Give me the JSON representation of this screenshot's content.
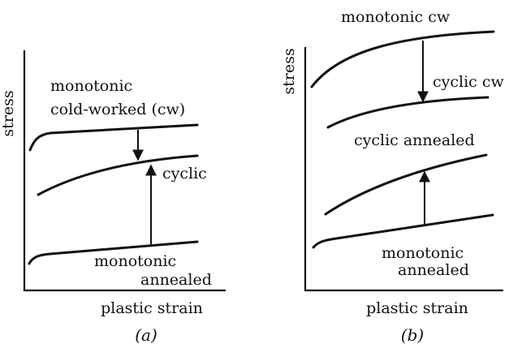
{
  "panel_a": {
    "caption": "(a)",
    "y_axis_label": "stress",
    "x_axis_label": "plastic strain",
    "labels": {
      "monotonic_cw_line1": "monotonic",
      "monotonic_cw_line2": "cold-worked (cw)",
      "cyclic": "cyclic",
      "monotonic_annealed_line1": "monotonic",
      "monotonic_annealed_line2": "annealed"
    }
  },
  "panel_b": {
    "caption": "(b)",
    "y_axis_label": "stress",
    "x_axis_label": "plastic strain",
    "labels": {
      "monotonic_cw": "monotonic cw",
      "cyclic_cw": "cyclic cw",
      "cyclic_annealed": "cyclic annealed",
      "monotonic_annealed_line1": "monotonic",
      "monotonic_annealed_line2": "annealed"
    }
  }
}
